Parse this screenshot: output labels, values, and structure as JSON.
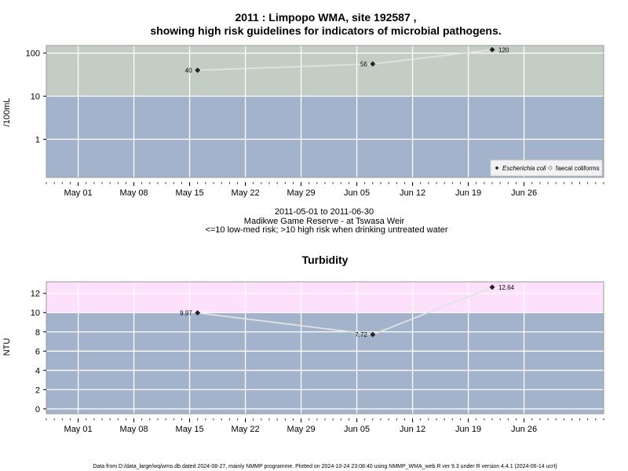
{
  "chart_data": [
    {
      "type": "line",
      "title": "2011 : Limpopo WMA, site 192587 ,",
      "subtitle": "showing high risk guidelines for indicators of microbial pathogens.",
      "ylabel": "/100mL",
      "yscale": "log",
      "ylim": [
        0.13,
        150
      ],
      "yticks": [
        1,
        10,
        100
      ],
      "ytick_labels": [
        "1",
        "10",
        "100"
      ],
      "xlim": [
        "2011-04-27",
        "2011-07-06"
      ],
      "xticks": [
        "2011-05-01",
        "2011-05-08",
        "2011-05-15",
        "2011-05-22",
        "2011-05-29",
        "2011-06-05",
        "2011-06-12",
        "2011-06-19",
        "2011-06-26"
      ],
      "xtick_labels": [
        "May 01",
        "May 08",
        "May 15",
        "May 22",
        "May 29",
        "Jun 05",
        "Jun 12",
        "Jun 19",
        "Jun 26"
      ],
      "grid": true,
      "bands": [
        {
          "from": 0.13,
          "to": 10,
          "color": "#a2b3cb"
        },
        {
          "from": 10,
          "to": 150,
          "color": "#c3cdc4"
        }
      ],
      "series": [
        {
          "name": "Escherichia coli",
          "marker": "filled-diamond",
          "x": [
            "2011-05-16",
            "2011-06-07",
            "2011-06-22"
          ],
          "y": [
            40,
            56,
            120
          ],
          "labels": [
            "40",
            "56",
            "120"
          ]
        }
      ],
      "legend": {
        "position": "bottom-right",
        "entries": [
          "Escherichia coli",
          "faecal coliforms"
        ]
      },
      "notes": [
        "2011-05-01 to 2011-06-30",
        "Madikwe Game Reserve - at Tswasa Weir",
        "<=10 low-med risk; >10 high risk when drinking untreated water"
      ]
    },
    {
      "type": "line",
      "title": "Turbidity",
      "ylabel": "NTU",
      "ylim": [
        -0.5,
        13.2
      ],
      "yticks": [
        0,
        2,
        4,
        6,
        8,
        10,
        12
      ],
      "ytick_labels": [
        "0",
        "2",
        "4",
        "6",
        "8",
        "10",
        "12"
      ],
      "xlim": [
        "2011-04-27",
        "2011-07-06"
      ],
      "xticks": [
        "2011-05-01",
        "2011-05-08",
        "2011-05-15",
        "2011-05-22",
        "2011-05-29",
        "2011-06-05",
        "2011-06-12",
        "2011-06-19",
        "2011-06-26"
      ],
      "xtick_labels": [
        "May 01",
        "May 08",
        "May 15",
        "May 22",
        "May 29",
        "Jun 05",
        "Jun 12",
        "Jun 19",
        "Jun 26"
      ],
      "grid": true,
      "bands": [
        {
          "from": -0.5,
          "to": 10,
          "color": "#a2b3cb"
        },
        {
          "from": 10,
          "to": 13.2,
          "color": "#fce0fc"
        }
      ],
      "series": [
        {
          "marker": "filled-diamond",
          "x": [
            "2011-05-16",
            "2011-06-07",
            "2011-06-22"
          ],
          "y": [
            9.97,
            7.72,
            12.64
          ],
          "labels": [
            "9.97",
            "7.72",
            "12.64"
          ]
        }
      ]
    }
  ],
  "footer": "Data from D:/data_large/wq/wms.db dated 2024-08-27, mainly NMMP programme. Plotted on 2024-10-24 23:08:40 using NMMP_WMA_web.R ver 9.3 under R version 4.4.1 (2024-06-14 ucrt)"
}
